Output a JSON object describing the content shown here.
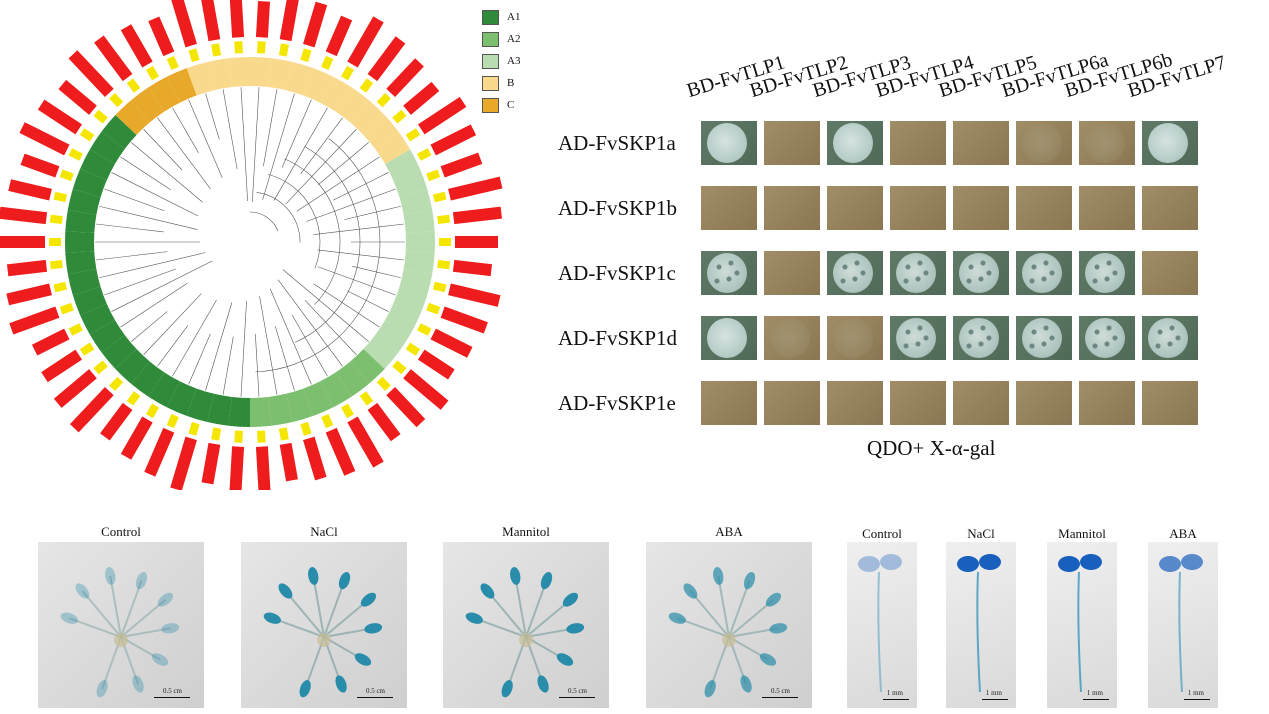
{
  "tree": {
    "legend": [
      {
        "label": "A1",
        "color": "#2f8a3a"
      },
      {
        "label": "A2",
        "color": "#7cbf6f"
      },
      {
        "label": "A3",
        "color": "#b9ddb0"
      },
      {
        "label": "B",
        "color": "#f9d98c"
      },
      {
        "label": "C",
        "color": "#e8a92a"
      }
    ],
    "bar_color": "#ee1c1c",
    "tag_color": "#f5e600"
  },
  "y2h": {
    "columns": [
      "BD-FvTLP1",
      "BD-FvTLP2",
      "BD-FvTLP3",
      "BD-FvTLP4",
      "BD-FvTLP5",
      "BD-FvTLP6a",
      "BD-FvTLP6b",
      "BD-FvTLP7"
    ],
    "rows": [
      {
        "label": "AD-FvSKP1a",
        "cells": [
          "blue",
          "none",
          "blue",
          "none",
          "none",
          "faint",
          "faint",
          "blue"
        ]
      },
      {
        "label": "AD-FvSKP1b",
        "cells": [
          "none",
          "none",
          "none",
          "none",
          "none",
          "none",
          "none",
          "none"
        ]
      },
      {
        "label": "AD-FvSKP1c",
        "cells": [
          "speckle",
          "none",
          "speckle",
          "speckle",
          "speckle",
          "speckle",
          "speckle",
          "none"
        ]
      },
      {
        "label": "AD-FvSKP1d",
        "cells": [
          "blue",
          "faint",
          "faint",
          "speckle",
          "speckle",
          "speckle",
          "speckle",
          "speckle"
        ]
      },
      {
        "label": "AD-FvSKP1e",
        "cells": [
          "none",
          "none",
          "none",
          "none",
          "none",
          "none",
          "none",
          "none"
        ]
      }
    ],
    "caption": "QDO+ X-α-gal"
  },
  "seedlings": [
    {
      "label": "Control",
      "scale": "0.5 cm",
      "intensity": "low"
    },
    {
      "label": "NaCl",
      "scale": "0.5 cm",
      "intensity": "high"
    },
    {
      "label": "Mannitol",
      "scale": "0.5 cm",
      "intensity": "high"
    },
    {
      "label": "ABA",
      "scale": "0.5 cm",
      "intensity": "medium"
    }
  ],
  "sprouts": [
    {
      "label": "Control",
      "scale": "1 mm",
      "intensity": "low"
    },
    {
      "label": "NaCl",
      "scale": "1 mm",
      "intensity": "high"
    },
    {
      "label": "Mannitol",
      "scale": "1 mm",
      "intensity": "high"
    },
    {
      "label": "ABA",
      "scale": "1 mm",
      "intensity": "medium"
    }
  ]
}
